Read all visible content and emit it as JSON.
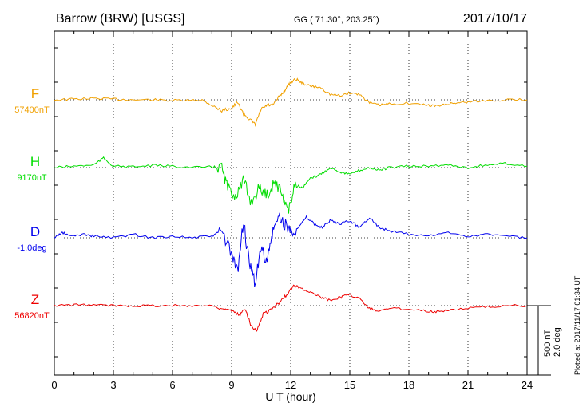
{
  "header": {
    "station": "Barrow (BRW)  [USGS]",
    "coords": "GG ( 71.30°, 203.25°)",
    "date": "2017/10/17"
  },
  "side_note": "Plotted at 2017/11/17 01:34 UT",
  "scale_bar": {
    "line1": "500 nT",
    "line2": "2.0 deg"
  },
  "chart_data": {
    "type": "line",
    "xlabel": "U T (hour)",
    "xlim": [
      0,
      24
    ],
    "xticks": [
      "0",
      "3",
      "6",
      "9",
      "12",
      "15",
      "18",
      "21",
      "24"
    ],
    "grid": true,
    "scale_per_div": "500 nT / 2.0 deg",
    "series": [
      {
        "name": "F",
        "baseline_label": "57400nT",
        "color": "#f0a000",
        "unit": "nT",
        "baseline": 57400,
        "x": [
          0,
          1,
          2,
          3,
          4,
          5,
          6,
          7,
          7.5,
          8,
          8.5,
          9,
          9.3,
          9.6,
          9.9,
          10.2,
          10.5,
          10.8,
          11.1,
          11.4,
          11.7,
          12,
          12.3,
          12.6,
          13,
          13.5,
          14,
          14.5,
          15,
          15.5,
          16,
          16.5,
          17,
          18,
          19,
          19.5,
          20,
          20.5,
          21,
          22,
          23,
          24
        ],
        "y": [
          0,
          5,
          10,
          5,
          0,
          0,
          -5,
          -5,
          0,
          -40,
          -80,
          -60,
          -20,
          -100,
          -140,
          -180,
          -70,
          -40,
          -40,
          20,
          70,
          130,
          150,
          120,
          100,
          90,
          40,
          30,
          50,
          40,
          -20,
          -40,
          -30,
          -25,
          -40,
          -45,
          -30,
          -20,
          -15,
          -5,
          0,
          0
        ]
      },
      {
        "name": "H",
        "baseline_label": "9170nT",
        "color": "#00dd00",
        "unit": "nT",
        "baseline": 9170,
        "x": [
          0,
          1,
          2,
          2.5,
          3,
          4,
          5,
          6,
          7,
          8,
          8.5,
          8.8,
          9.2,
          9.6,
          10,
          10.4,
          10.8,
          11.2,
          11.6,
          11.9,
          12.2,
          12.6,
          13,
          13.5,
          14,
          14.5,
          15,
          15.5,
          16,
          16.5,
          17,
          18,
          19,
          20,
          21,
          22,
          23,
          24
        ],
        "y": [
          0,
          10,
          20,
          70,
          10,
          5,
          15,
          10,
          0,
          5,
          0,
          -150,
          -200,
          -100,
          -250,
          -150,
          -200,
          -100,
          -200,
          -320,
          -120,
          -150,
          -80,
          -50,
          0,
          -30,
          -50,
          -20,
          0,
          -20,
          0,
          10,
          10,
          20,
          0,
          20,
          30,
          10
        ]
      },
      {
        "name": "D",
        "baseline_label": "-1.0deg",
        "color": "#0000ee",
        "unit": "deg",
        "baseline": -1.0,
        "x": [
          0,
          0.4,
          0.8,
          1.5,
          2,
          3,
          4,
          5,
          6,
          7,
          8,
          8.5,
          9,
          9.3,
          9.6,
          9.9,
          10.2,
          10.5,
          10.8,
          11.1,
          11.4,
          11.7,
          12,
          12.4,
          12.8,
          13.2,
          13.6,
          14,
          14.5,
          15,
          15.5,
          16,
          16.5,
          17,
          18,
          19,
          20,
          21,
          22,
          23,
          24
        ],
        "y": [
          0,
          0.15,
          0.05,
          0.1,
          0.05,
          0,
          0.1,
          0,
          0.05,
          0,
          0.05,
          0.2,
          -0.5,
          -1.0,
          0.5,
          -0.8,
          -1.3,
          -0.3,
          -0.7,
          0.2,
          0.6,
          0.4,
          0.2,
          0.3,
          0.6,
          0.4,
          0.3,
          0.5,
          0.4,
          0.5,
          0.3,
          0.6,
          0.3,
          0.2,
          0.1,
          0.05,
          0.15,
          0.05,
          0.1,
          0.05,
          0
        ]
      },
      {
        "name": "Z",
        "baseline_label": "56820nT",
        "color": "#ee0000",
        "unit": "nT",
        "baseline": 56820,
        "x": [
          0,
          1,
          2,
          3,
          4,
          5,
          6,
          7,
          8,
          8.5,
          9,
          9.4,
          9.7,
          10,
          10.3,
          10.6,
          11,
          11.4,
          11.8,
          12.2,
          12.6,
          13,
          13.5,
          14,
          14.5,
          15,
          15.5,
          16,
          16.5,
          17,
          18,
          19,
          19.5,
          20,
          21,
          22,
          23,
          24
        ],
        "y": [
          0,
          5,
          5,
          0,
          0,
          0,
          0,
          0,
          0,
          -20,
          -40,
          -70,
          -20,
          -150,
          -180,
          -60,
          -30,
          20,
          80,
          150,
          120,
          100,
          60,
          40,
          60,
          80,
          50,
          -20,
          -40,
          -20,
          -25,
          -40,
          -45,
          -30,
          -20,
          -10,
          0,
          0
        ]
      }
    ]
  }
}
